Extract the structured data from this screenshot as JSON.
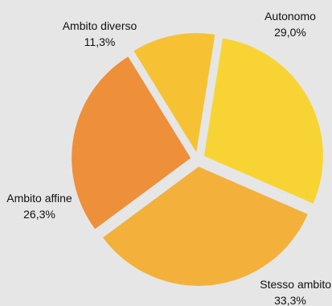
{
  "chart_data": {
    "type": "pie",
    "title": "",
    "slices": [
      {
        "label": "Autonomo",
        "value": 29.0,
        "value_label": "29,0%",
        "color": "#f7d433"
      },
      {
        "label": "Stesso ambito",
        "value": 33.3,
        "value_label": "33,3%",
        "color": "#f3b13c"
      },
      {
        "label": "Ambito affine",
        "value": 26.3,
        "value_label": "26,3%",
        "color": "#ee8f39"
      },
      {
        "label": "Ambito diverso",
        "value": 11.3,
        "value_label": "11,3%",
        "color": "#f6c233"
      }
    ],
    "exploded": true,
    "legend": "none",
    "background": "#e6e6e6"
  }
}
